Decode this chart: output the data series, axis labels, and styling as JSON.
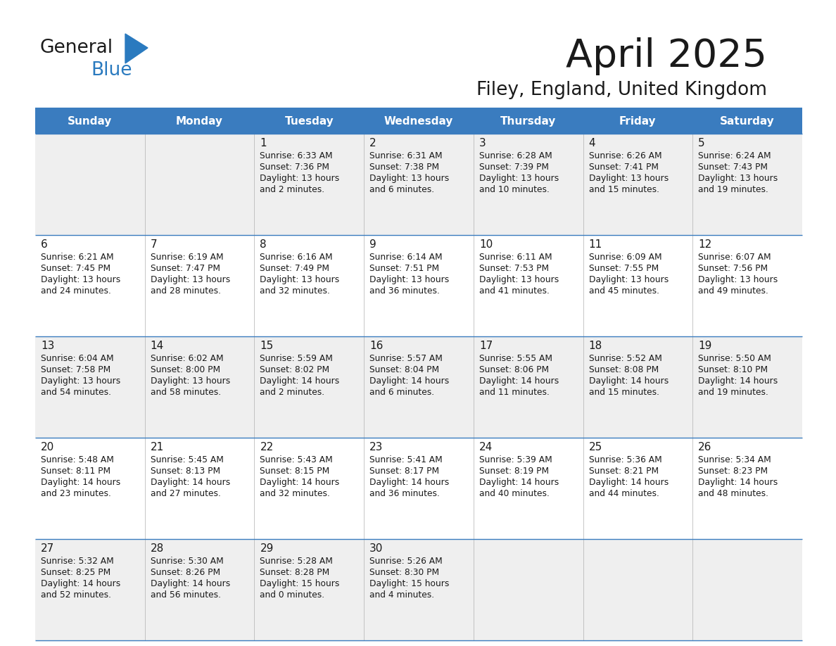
{
  "title": "April 2025",
  "subtitle": "Filey, England, United Kingdom",
  "header_bg_color": "#3a7cbf",
  "header_text_color": "#ffffff",
  "day_names": [
    "Sunday",
    "Monday",
    "Tuesday",
    "Wednesday",
    "Thursday",
    "Friday",
    "Saturday"
  ],
  "row_colors": [
    "#efefef",
    "#ffffff"
  ],
  "border_color": "#3a7cbf",
  "title_color": "#1a1a1a",
  "subtitle_color": "#1a1a1a",
  "cell_text_color": "#1a1a1a",
  "logo_text_color": "#1a1a1a",
  "logo_blue_color": "#2a7abf",
  "weeks": [
    [
      {
        "day": "",
        "sunrise": "",
        "sunset": "",
        "daylight": ""
      },
      {
        "day": "",
        "sunrise": "",
        "sunset": "",
        "daylight": ""
      },
      {
        "day": "1",
        "sunrise": "6:33 AM",
        "sunset": "7:36 PM",
        "daylight": "13 hours\nand 2 minutes."
      },
      {
        "day": "2",
        "sunrise": "6:31 AM",
        "sunset": "7:38 PM",
        "daylight": "13 hours\nand 6 minutes."
      },
      {
        "day": "3",
        "sunrise": "6:28 AM",
        "sunset": "7:39 PM",
        "daylight": "13 hours\nand 10 minutes."
      },
      {
        "day": "4",
        "sunrise": "6:26 AM",
        "sunset": "7:41 PM",
        "daylight": "13 hours\nand 15 minutes."
      },
      {
        "day": "5",
        "sunrise": "6:24 AM",
        "sunset": "7:43 PM",
        "daylight": "13 hours\nand 19 minutes."
      }
    ],
    [
      {
        "day": "6",
        "sunrise": "6:21 AM",
        "sunset": "7:45 PM",
        "daylight": "13 hours\nand 24 minutes."
      },
      {
        "day": "7",
        "sunrise": "6:19 AM",
        "sunset": "7:47 PM",
        "daylight": "13 hours\nand 28 minutes."
      },
      {
        "day": "8",
        "sunrise": "6:16 AM",
        "sunset": "7:49 PM",
        "daylight": "13 hours\nand 32 minutes."
      },
      {
        "day": "9",
        "sunrise": "6:14 AM",
        "sunset": "7:51 PM",
        "daylight": "13 hours\nand 36 minutes."
      },
      {
        "day": "10",
        "sunrise": "6:11 AM",
        "sunset": "7:53 PM",
        "daylight": "13 hours\nand 41 minutes."
      },
      {
        "day": "11",
        "sunrise": "6:09 AM",
        "sunset": "7:55 PM",
        "daylight": "13 hours\nand 45 minutes."
      },
      {
        "day": "12",
        "sunrise": "6:07 AM",
        "sunset": "7:56 PM",
        "daylight": "13 hours\nand 49 minutes."
      }
    ],
    [
      {
        "day": "13",
        "sunrise": "6:04 AM",
        "sunset": "7:58 PM",
        "daylight": "13 hours\nand 54 minutes."
      },
      {
        "day": "14",
        "sunrise": "6:02 AM",
        "sunset": "8:00 PM",
        "daylight": "13 hours\nand 58 minutes."
      },
      {
        "day": "15",
        "sunrise": "5:59 AM",
        "sunset": "8:02 PM",
        "daylight": "14 hours\nand 2 minutes."
      },
      {
        "day": "16",
        "sunrise": "5:57 AM",
        "sunset": "8:04 PM",
        "daylight": "14 hours\nand 6 minutes."
      },
      {
        "day": "17",
        "sunrise": "5:55 AM",
        "sunset": "8:06 PM",
        "daylight": "14 hours\nand 11 minutes."
      },
      {
        "day": "18",
        "sunrise": "5:52 AM",
        "sunset": "8:08 PM",
        "daylight": "14 hours\nand 15 minutes."
      },
      {
        "day": "19",
        "sunrise": "5:50 AM",
        "sunset": "8:10 PM",
        "daylight": "14 hours\nand 19 minutes."
      }
    ],
    [
      {
        "day": "20",
        "sunrise": "5:48 AM",
        "sunset": "8:11 PM",
        "daylight": "14 hours\nand 23 minutes."
      },
      {
        "day": "21",
        "sunrise": "5:45 AM",
        "sunset": "8:13 PM",
        "daylight": "14 hours\nand 27 minutes."
      },
      {
        "day": "22",
        "sunrise": "5:43 AM",
        "sunset": "8:15 PM",
        "daylight": "14 hours\nand 32 minutes."
      },
      {
        "day": "23",
        "sunrise": "5:41 AM",
        "sunset": "8:17 PM",
        "daylight": "14 hours\nand 36 minutes."
      },
      {
        "day": "24",
        "sunrise": "5:39 AM",
        "sunset": "8:19 PM",
        "daylight": "14 hours\nand 40 minutes."
      },
      {
        "day": "25",
        "sunrise": "5:36 AM",
        "sunset": "8:21 PM",
        "daylight": "14 hours\nand 44 minutes."
      },
      {
        "day": "26",
        "sunrise": "5:34 AM",
        "sunset": "8:23 PM",
        "daylight": "14 hours\nand 48 minutes."
      }
    ],
    [
      {
        "day": "27",
        "sunrise": "5:32 AM",
        "sunset": "8:25 PM",
        "daylight": "14 hours\nand 52 minutes."
      },
      {
        "day": "28",
        "sunrise": "5:30 AM",
        "sunset": "8:26 PM",
        "daylight": "14 hours\nand 56 minutes."
      },
      {
        "day": "29",
        "sunrise": "5:28 AM",
        "sunset": "8:28 PM",
        "daylight": "15 hours\nand 0 minutes."
      },
      {
        "day": "30",
        "sunrise": "5:26 AM",
        "sunset": "8:30 PM",
        "daylight": "15 hours\nand 4 minutes."
      },
      {
        "day": "",
        "sunrise": "",
        "sunset": "",
        "daylight": ""
      },
      {
        "day": "",
        "sunrise": "",
        "sunset": "",
        "daylight": ""
      },
      {
        "day": "",
        "sunrise": "",
        "sunset": "",
        "daylight": ""
      }
    ]
  ],
  "fig_width": 11.88,
  "fig_height": 9.18,
  "dpi": 100
}
